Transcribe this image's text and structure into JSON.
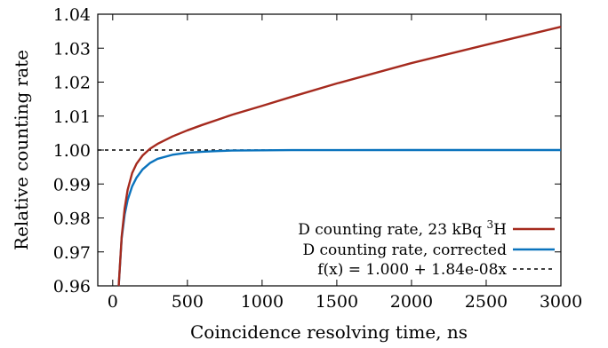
{
  "chart_data": {
    "type": "line",
    "xlabel": "Coincidence resolving time, ns",
    "ylabel": "Relative counting rate",
    "xlim": [
      -100,
      3000
    ],
    "ylim": [
      0.96,
      1.04
    ],
    "x_ticks": [
      0,
      500,
      1000,
      1500,
      2000,
      2500,
      3000
    ],
    "x_tick_labels": [
      "0",
      "500",
      "1000",
      "1500",
      "2000",
      "2500",
      "3000"
    ],
    "y_ticks": [
      0.96,
      0.97,
      0.98,
      0.99,
      1.0,
      1.01,
      1.02,
      1.03,
      1.04
    ],
    "y_tick_labels": [
      "0.96",
      "0.97",
      "0.98",
      "0.99",
      "1.00",
      "1.01",
      "1.02",
      "1.03",
      "1.04"
    ],
    "grid": false,
    "legend_position": "bottom-right",
    "series": [
      {
        "name_parts": [
          "D counting rate, 23 kBq ",
          "3",
          "H"
        ],
        "color": "#a52a1e",
        "style": "solid",
        "x": [
          40,
          60,
          80,
          100,
          130,
          160,
          200,
          250,
          300,
          400,
          500,
          600,
          700,
          800,
          1000,
          1200,
          1500,
          2000,
          2500,
          3000
        ],
        "y": [
          0.96,
          0.9745,
          0.9828,
          0.9883,
          0.9932,
          0.996,
          0.9984,
          1.0004,
          1.0018,
          1.004,
          1.0058,
          1.0074,
          1.0089,
          1.0104,
          1.013,
          1.0157,
          1.0196,
          1.0256,
          1.031,
          1.0363
        ]
      },
      {
        "name": "D counting rate, corrected",
        "color": "#0a73bd",
        "style": "solid",
        "x": [
          40,
          60,
          80,
          100,
          130,
          160,
          200,
          250,
          300,
          400,
          500,
          600,
          700,
          800,
          1000,
          1200,
          1500,
          2000,
          2500,
          3000
        ],
        "y": [
          0.96,
          0.974,
          0.981,
          0.9853,
          0.9893,
          0.9919,
          0.9943,
          0.9962,
          0.9974,
          0.9986,
          0.9992,
          0.9995,
          0.9997,
          0.99985,
          0.99993,
          0.99997,
          0.99999,
          1.0,
          1.0,
          1.0
        ]
      },
      {
        "name": "f(x) = 1.000 + 1.84e-08x",
        "color": "#000000",
        "style": "dashed",
        "x": [
          -100,
          3000
        ],
        "y": [
          1.0,
          1.0
        ]
      }
    ]
  }
}
